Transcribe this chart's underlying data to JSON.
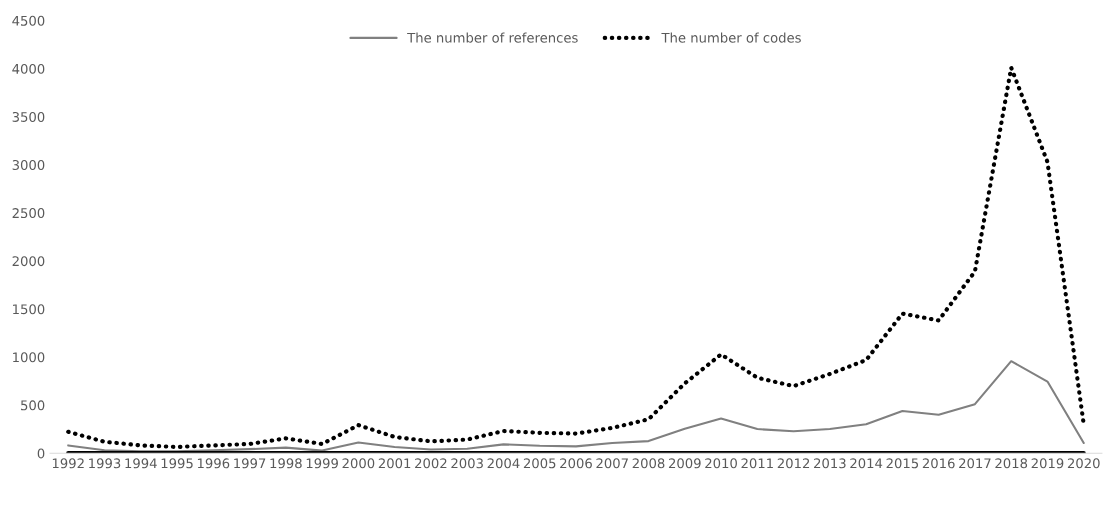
{
  "chart_data": {
    "type": "line",
    "categories": [
      "1992",
      "1993",
      "1994",
      "1995",
      "1996",
      "1997",
      "1998",
      "1999",
      "2000",
      "2001",
      "2002",
      "2003",
      "2004",
      "2005",
      "2006",
      "2007",
      "2008",
      "2009",
      "2010",
      "2011",
      "2012",
      "2013",
      "2014",
      "2015",
      "2016",
      "2017",
      "2018",
      "2019",
      "2020"
    ],
    "series": [
      {
        "name": "The number of references",
        "color": "#808080",
        "line_style": "solid",
        "values": [
          81,
          31,
          19,
          19,
          31,
          42,
          58,
          27,
          112,
          65,
          38,
          46,
          92,
          77,
          71,
          106,
          126,
          255,
          361,
          251,
          228,
          251,
          302,
          439,
          400,
          510,
          957,
          745,
          106
        ]
      },
      {
        "name": "The number of codes",
        "color": "#000000",
        "line_style": "dotted",
        "values": [
          223,
          119,
          81,
          65,
          81,
          96,
          154,
          96,
          292,
          169,
          123,
          142,
          231,
          212,
          204,
          263,
          353,
          726,
          1028,
          785,
          698,
          824,
          969,
          1452,
          1381,
          1891,
          4010,
          3029,
          300
        ]
      },
      {
        "color": "#000000",
        "line_style": "solid",
        "values": [
          0,
          0,
          0,
          0,
          0,
          0,
          0,
          0,
          0,
          0,
          0,
          0,
          0,
          0,
          0,
          0,
          0,
          0,
          0,
          0,
          0,
          0,
          0,
          0,
          0,
          0,
          0,
          0,
          0
        ]
      }
    ],
    "ylim": [
      0,
      4500
    ],
    "yticks": [
      0,
      500,
      1000,
      1500,
      2000,
      2500,
      3000,
      3500,
      4000,
      4500
    ],
    "grid": false,
    "legend": "top",
    "marker": "none"
  }
}
